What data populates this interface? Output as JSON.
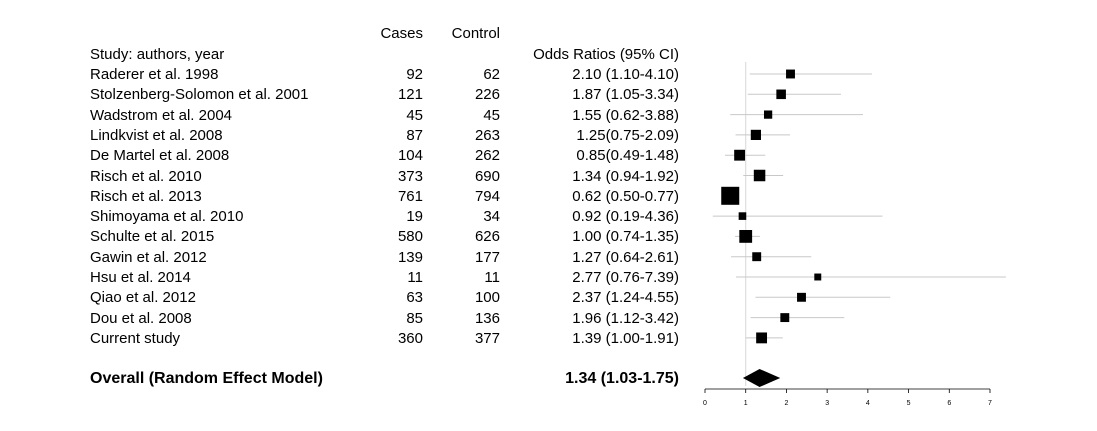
{
  "headers": {
    "cases": "Cases",
    "control": "Control",
    "study": "Study: authors, year",
    "or": "Odds Ratios (95% CI)"
  },
  "studies": [
    {
      "label": "Raderer et al. 1998",
      "cases": "92",
      "control": "62",
      "or_text": "2.10 (1.10-4.10)"
    },
    {
      "label": "Stolzenberg-Solomon et al. 2001",
      "cases": "121",
      "control": "226",
      "or_text": "1.87 (1.05-3.34)"
    },
    {
      "label": "Wadstrom et al. 2004",
      "cases": "45",
      "control": "45",
      "or_text": "1.55 (0.62-3.88)"
    },
    {
      "label": "Lindkvist et al. 2008",
      "cases": "87",
      "control": "263",
      "or_text": "1.25(0.75-2.09)"
    },
    {
      "label": "De Martel et al. 2008",
      "cases": "104",
      "control": "262",
      "or_text": "0.85(0.49-1.48)"
    },
    {
      "label": "Risch et al. 2010",
      "cases": "373",
      "control": "690",
      "or_text": "1.34 (0.94-1.92)"
    },
    {
      "label": "Risch et al. 2013",
      "cases": "761",
      "control": "794",
      "or_text": "0.62 (0.50-0.77)"
    },
    {
      "label": "Shimoyama et al. 2010",
      "cases": "19",
      "control": "34",
      "or_text": "0.92 (0.19-4.36)"
    },
    {
      "label": "Schulte et al. 2015",
      "cases": "580",
      "control": "626",
      "or_text": "1.00 (0.74-1.35)"
    },
    {
      "label": "Gawin et al. 2012",
      "cases": "139",
      "control": "177",
      "or_text": "1.27 (0.64-2.61)"
    },
    {
      "label": "Hsu et al. 2014",
      "cases": "11",
      "control": "11",
      "or_text": "2.77 (0.76-7.39)"
    },
    {
      "label": "Qiao et al. 2012",
      "cases": "63",
      "control": "100",
      "or_text": "2.37 (1.24-4.55)"
    },
    {
      "label": "Dou et al. 2008",
      "cases": "85",
      "control": "136",
      "or_text": "1.96 (1.12-3.42)"
    },
    {
      "label": "Current study",
      "cases": "360",
      "control": "377",
      "or_text": "1.39 (1.00-1.91)"
    }
  ],
  "overall": {
    "label": "Overall (Random Effect Model)",
    "or_text": "1.34 (1.03-1.75)"
  },
  "chart_data": {
    "type": "forest",
    "xlim": [
      0,
      7
    ],
    "xticks": [
      "0",
      "1",
      "2",
      "3",
      "4",
      "5",
      "6",
      "7"
    ],
    "reference_line": 1,
    "points": [
      {
        "or": 2.1,
        "lo": 1.1,
        "hi": 4.1,
        "weight": 0.3
      },
      {
        "or": 1.87,
        "lo": 1.05,
        "hi": 3.34,
        "weight": 0.35
      },
      {
        "or": 1.55,
        "lo": 0.62,
        "hi": 3.88,
        "weight": 0.25
      },
      {
        "or": 1.25,
        "lo": 0.75,
        "hi": 2.09,
        "weight": 0.4
      },
      {
        "or": 0.85,
        "lo": 0.49,
        "hi": 1.48,
        "weight": 0.45
      },
      {
        "or": 1.34,
        "lo": 0.94,
        "hi": 1.92,
        "weight": 0.5
      },
      {
        "or": 0.62,
        "lo": 0.5,
        "hi": 0.77,
        "weight": 1.0
      },
      {
        "or": 0.92,
        "lo": 0.19,
        "hi": 4.36,
        "weight": 0.2
      },
      {
        "or": 1.0,
        "lo": 0.74,
        "hi": 1.35,
        "weight": 0.6
      },
      {
        "or": 1.27,
        "lo": 0.64,
        "hi": 2.61,
        "weight": 0.3
      },
      {
        "or": 2.77,
        "lo": 0.76,
        "hi": 7.39,
        "weight": 0.15
      },
      {
        "or": 2.37,
        "lo": 1.24,
        "hi": 4.55,
        "weight": 0.3
      },
      {
        "or": 1.96,
        "lo": 1.12,
        "hi": 3.42,
        "weight": 0.3
      },
      {
        "or": 1.39,
        "lo": 1.0,
        "hi": 1.91,
        "weight": 0.45
      }
    ],
    "summary": {
      "or": 1.34,
      "lo": 1.03,
      "hi": 1.75
    },
    "colors": {
      "marker": "#000000",
      "ci_line": "#c8c8c8",
      "axis": "#000000"
    }
  }
}
